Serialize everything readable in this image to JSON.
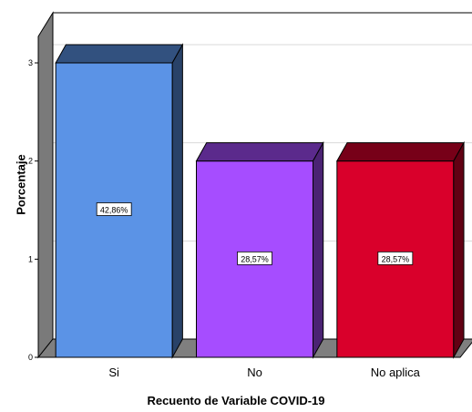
{
  "chart_data": {
    "type": "bar",
    "categories": [
      "Si",
      "No",
      "No aplica"
    ],
    "values": [
      3,
      2,
      2
    ],
    "data_labels": [
      "42,86%",
      "28,57%",
      "28,57%"
    ],
    "colors": [
      "#5b93e6",
      "#a64dff",
      "#d9002b"
    ],
    "xlabel": "Recuento de Variable  COVID-19",
    "ylabel": "Porcentaje",
    "ylim": [
      0,
      3
    ],
    "yticks": [
      "0",
      "1",
      "2",
      "3"
    ],
    "grid": true,
    "style": "3d"
  }
}
